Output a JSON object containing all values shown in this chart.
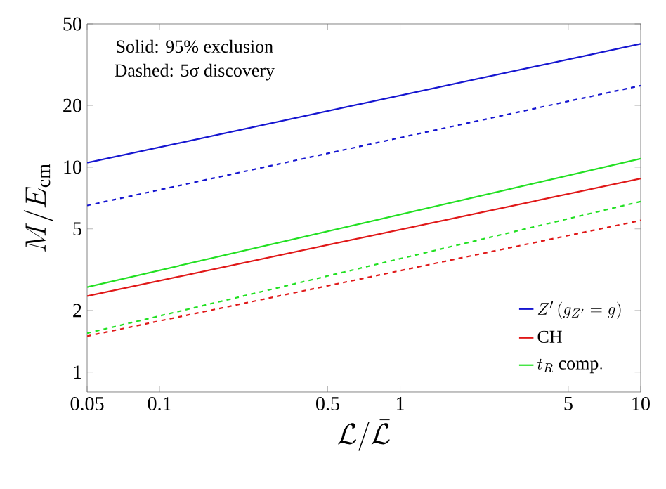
{
  "chart_data": {
    "type": "line",
    "log": "xy",
    "xlabel": "\\mathcal{L}/\\bar{\\mathcal{L}}",
    "ylabel": "M/E_{\\mathrm{cm}}",
    "xlim": [
      0.05,
      10
    ],
    "ylim": [
      0.8,
      50
    ],
    "xticks": [
      0.05,
      0.1,
      0.5,
      1,
      5,
      10
    ],
    "yticks": [
      1,
      2,
      5,
      10,
      20,
      50
    ],
    "x": [
      0.05,
      10
    ],
    "series": [
      {
        "name": "Z'\\,(g_{Z'}=g)",
        "color": "#1515d0",
        "values": [
          10.5,
          40
        ],
        "line_style": "solid"
      },
      {
        "color": "#1515d0",
        "values": [
          6.5,
          25
        ],
        "line_style": "dashed"
      },
      {
        "name": "\\mathrm{CH}",
        "color": "#e01818",
        "values": [
          2.35,
          8.8
        ],
        "line_style": "solid"
      },
      {
        "color": "#e01818",
        "values": [
          1.5,
          5.5
        ],
        "line_style": "dashed"
      },
      {
        "name": "t_R\\ \\mathrm{comp.}",
        "color": "#22e022",
        "values": [
          2.6,
          11
        ],
        "line_style": "solid"
      },
      {
        "color": "#22e022",
        "values": [
          1.55,
          6.8
        ],
        "line_style": "dashed"
      }
    ],
    "legend": "bottom right",
    "grid": false,
    "annotations": [
      "Solid: 95% exclusion",
      "Dashed: 5σ discovery"
    ]
  }
}
